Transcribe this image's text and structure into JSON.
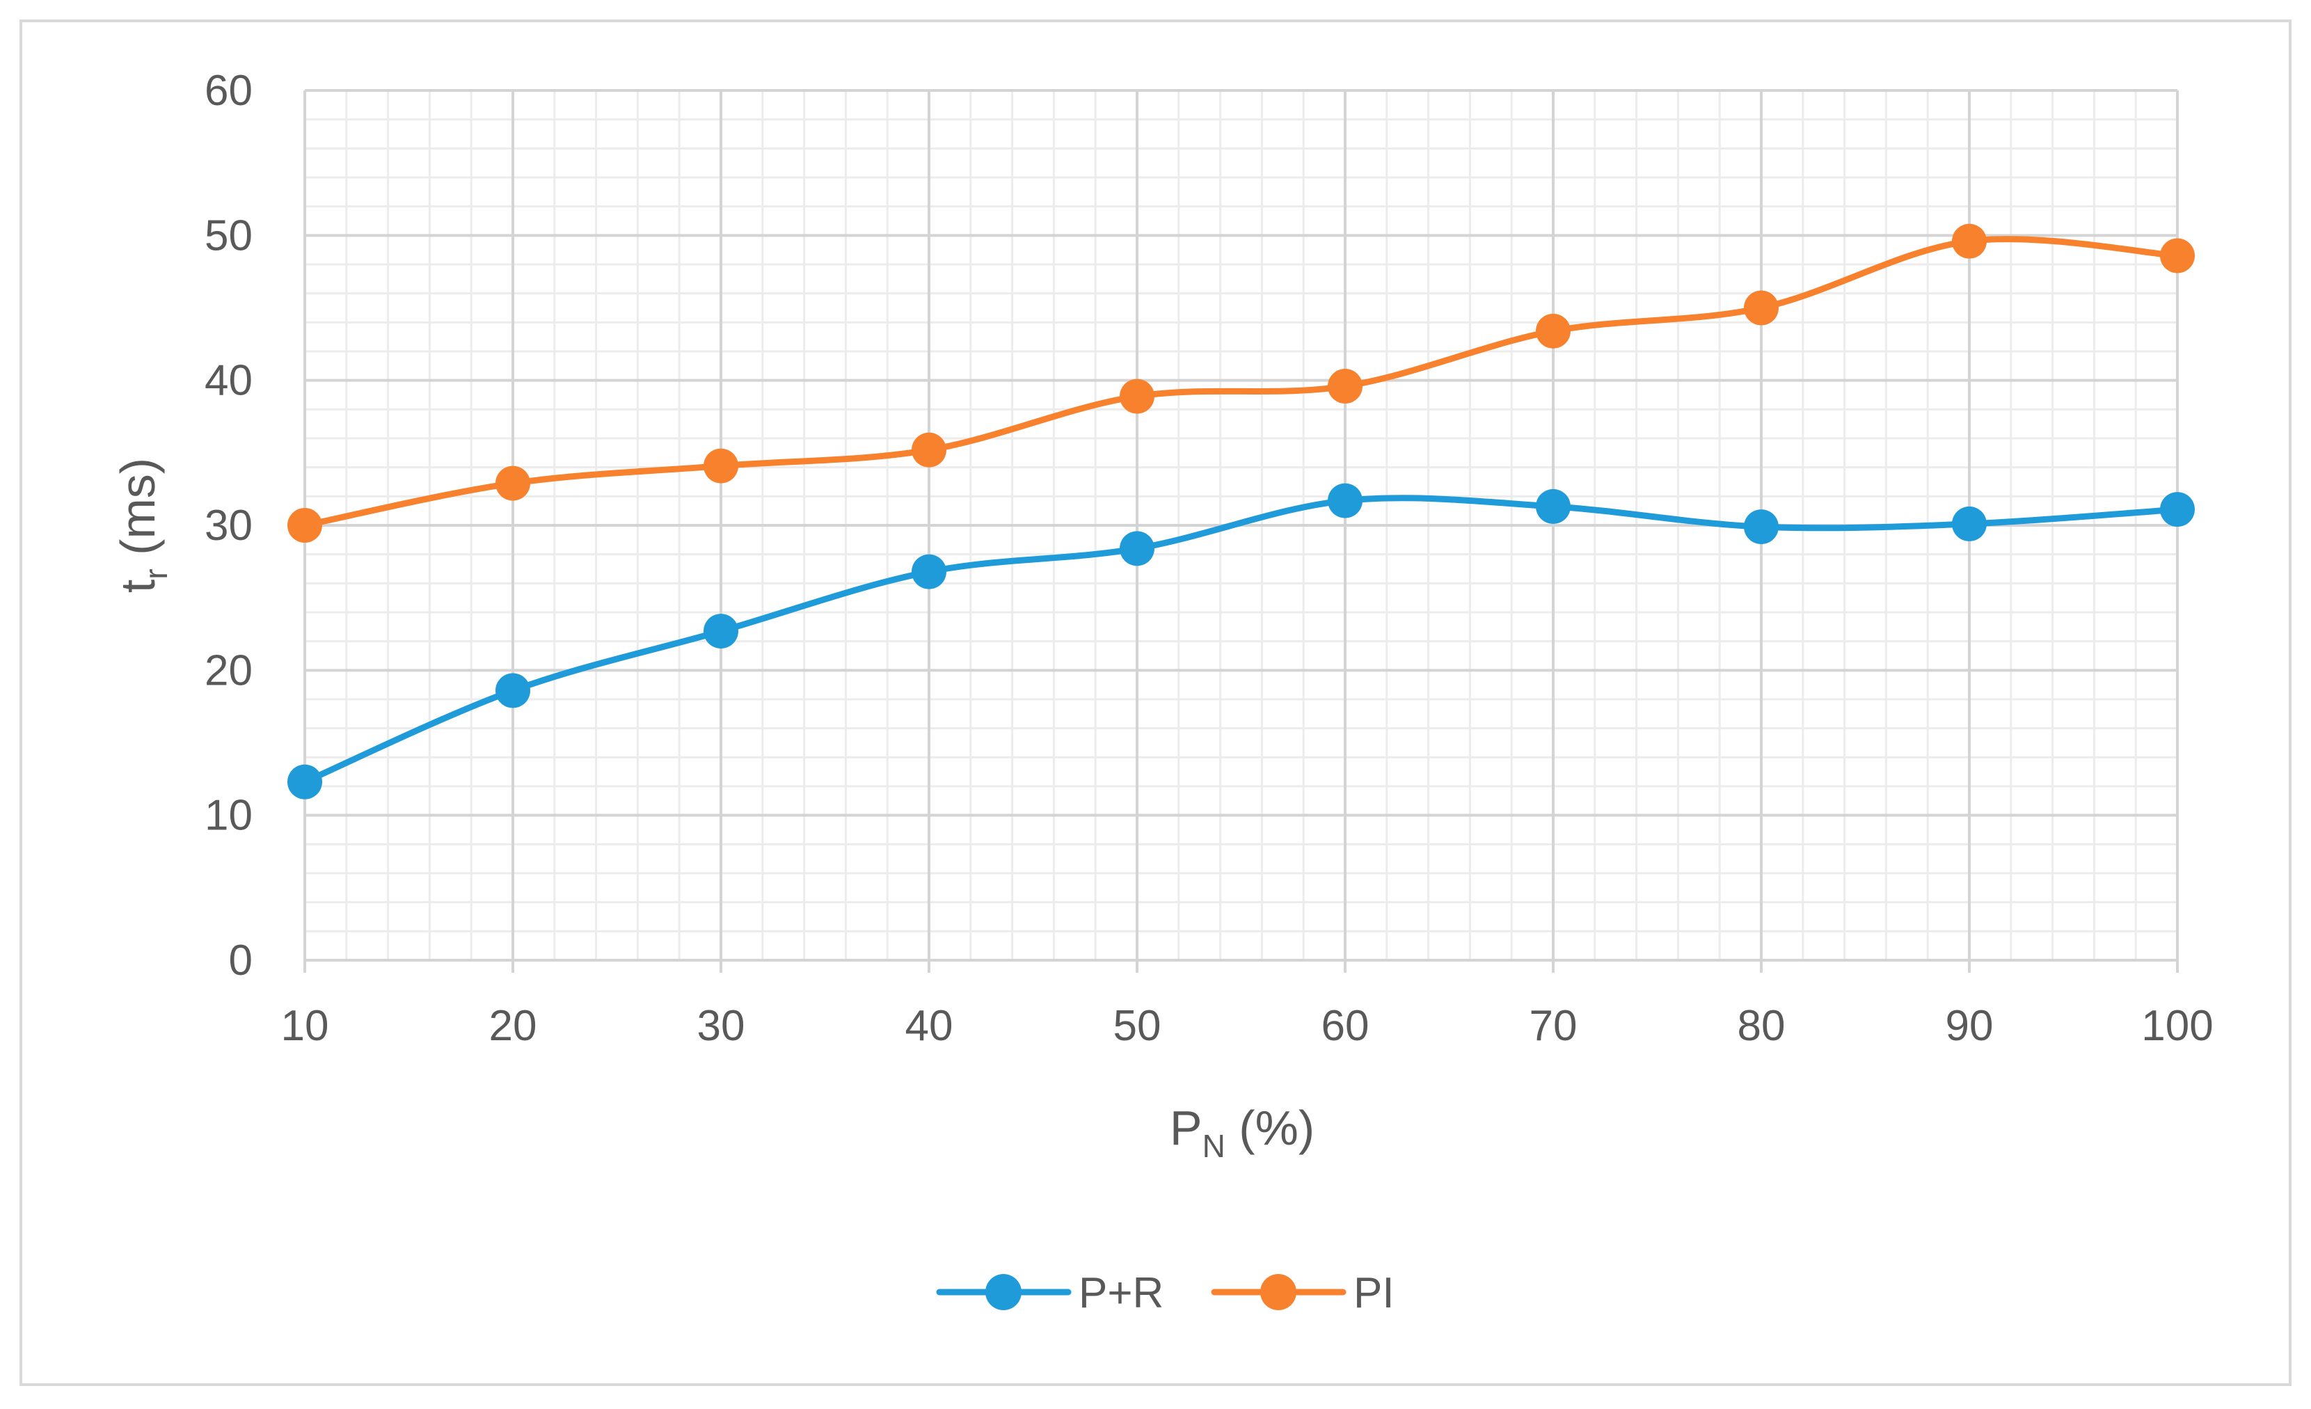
{
  "chart_data": {
    "type": "line",
    "title": "",
    "xlabel": "P",
    "xlabel_sub": "N",
    "xlabel_suffix": " (%)",
    "ylabel": "t",
    "ylabel_sub": "r",
    "ylabel_suffix": " (ms)",
    "x": [
      10,
      20,
      30,
      40,
      50,
      60,
      70,
      80,
      90,
      100
    ],
    "xlim": [
      10,
      100
    ],
    "ylim": [
      0,
      60
    ],
    "x_ticks": [
      10,
      20,
      30,
      40,
      50,
      60,
      70,
      80,
      90,
      100
    ],
    "y_ticks": [
      0,
      10,
      20,
      30,
      40,
      50,
      60
    ],
    "grid": true,
    "smooth": true,
    "legend_position": "bottom-center",
    "series": [
      {
        "name": "P+R",
        "color": "#1f9bd9",
        "values": [
          12.3,
          18.6,
          22.7,
          26.8,
          28.4,
          31.7,
          31.3,
          29.9,
          30.1,
          31.1
        ]
      },
      {
        "name": "PI",
        "color": "#f7812d",
        "values": [
          30.0,
          32.9,
          34.1,
          35.2,
          38.9,
          39.6,
          43.4,
          45.0,
          49.6,
          48.6
        ]
      }
    ]
  }
}
